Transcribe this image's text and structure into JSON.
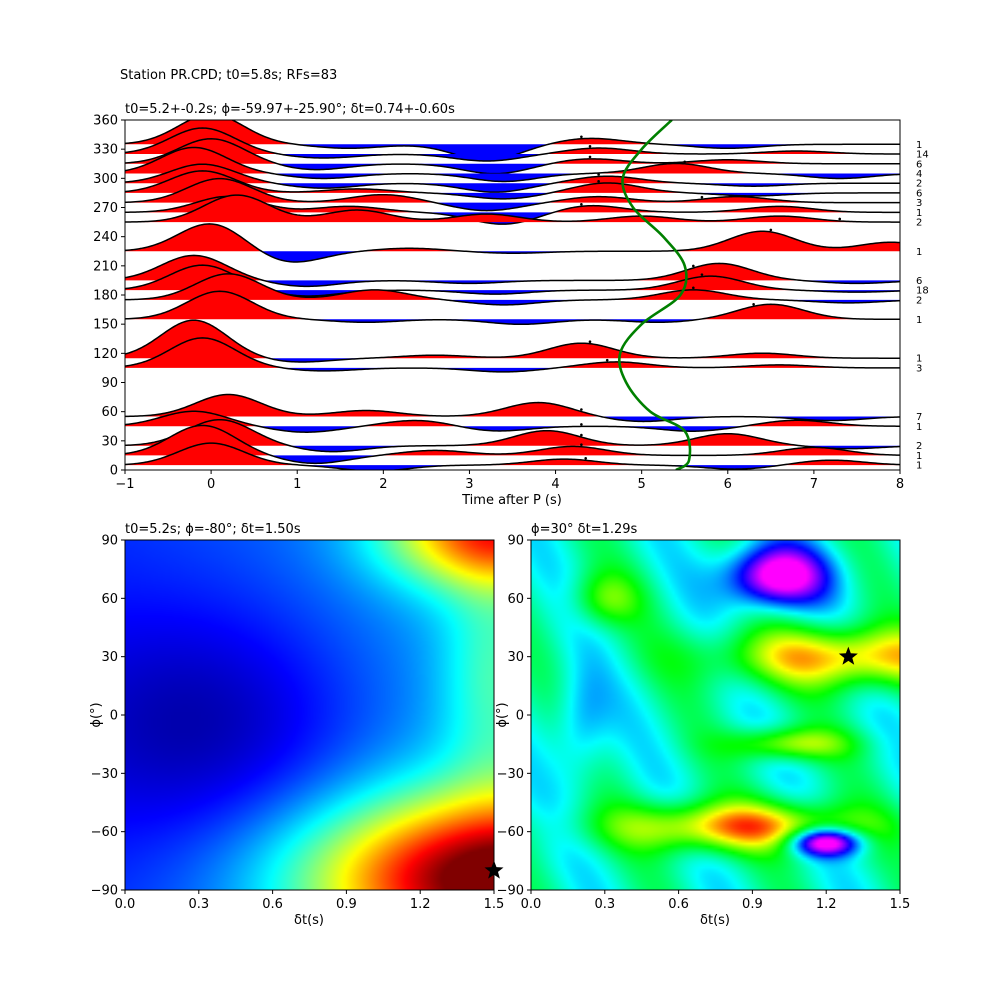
{
  "figure": {
    "suptitle": "Station PR.CPD; t0=5.8s; RFs=83"
  },
  "chart_data": [
    {
      "type": "line",
      "panel": "receiver-function-traces",
      "title": "t0=5.2+-0.2s; ϕ=-59.97+-25.90°; δt=0.74+-0.60s",
      "xlabel": "Time after P (s)",
      "ylabel": "",
      "xlim": [
        -1,
        8
      ],
      "ylim": [
        0,
        360
      ],
      "xticks": [
        -1,
        0,
        1,
        2,
        3,
        4,
        5,
        6,
        7,
        8
      ],
      "yticks": [
        0,
        30,
        60,
        90,
        120,
        150,
        180,
        210,
        240,
        270,
        300,
        330,
        360
      ],
      "positive_fill_color": "#ff0000",
      "negative_fill_color": "#0000ff",
      "trace_color": "#000000",
      "model_curve_color": "#008000",
      "model_curve": {
        "name": "",
        "description_values": [
          {
            "x": 5.4,
            "y": 0
          },
          {
            "x": 5.55,
            "y": 10
          },
          {
            "x": 5.5,
            "y": 40
          },
          {
            "x": 5.1,
            "y": 60
          },
          {
            "x": 4.82,
            "y": 90
          },
          {
            "x": 4.75,
            "y": 120
          },
          {
            "x": 5.0,
            "y": 150
          },
          {
            "x": 5.45,
            "y": 180
          },
          {
            "x": 5.5,
            "y": 210
          },
          {
            "x": 5.25,
            "y": 240
          },
          {
            "x": 4.9,
            "y": 270
          },
          {
            "x": 4.78,
            "y": 300
          },
          {
            "x": 5.0,
            "y": 330
          },
          {
            "x": 5.35,
            "y": 360
          }
        ]
      },
      "traces": [
        {
          "baz": 5,
          "count": "1",
          "dot_time": 4.35,
          "peaks": [
            {
              "t": 0.0,
              "a": 22
            },
            {
              "t": 1.9,
              "a": -6
            },
            {
              "t": 4.1,
              "a": 6
            },
            {
              "t": 6.1,
              "a": -4
            },
            {
              "t": 7.2,
              "a": 5
            }
          ]
        },
        {
          "baz": 15,
          "count": "1",
          "dot_time": 4.3,
          "peaks": [
            {
              "t": -0.1,
              "a": 30
            },
            {
              "t": 1.2,
              "a": -8
            },
            {
              "t": 2.6,
              "a": 5
            },
            {
              "t": 4.2,
              "a": 9
            },
            {
              "t": 7.0,
              "a": 8
            }
          ]
        },
        {
          "baz": 25,
          "count": "2",
          "dot_time": 4.3,
          "peaks": [
            {
              "t": 0.1,
              "a": 26
            },
            {
              "t": 1.4,
              "a": -6
            },
            {
              "t": 3.9,
              "a": 15
            },
            {
              "t": 6.0,
              "a": 12
            },
            {
              "t": 7.4,
              "a": -3
            }
          ]
        },
        {
          "baz": 45,
          "count": "1",
          "dot_time": 4.3,
          "peaks": [
            {
              "t": -0.2,
              "a": 15
            },
            {
              "t": 1.1,
              "a": -6
            },
            {
              "t": 2.4,
              "a": 6
            },
            {
              "t": 3.3,
              "a": -5
            },
            {
              "t": 5.6,
              "a": -5
            },
            {
              "t": 6.8,
              "a": 6
            }
          ]
        },
        {
          "baz": 55,
          "count": "7",
          "dot_time": 4.3,
          "peaks": [
            {
              "t": 0.2,
              "a": 22
            },
            {
              "t": 1.8,
              "a": 6
            },
            {
              "t": 3.8,
              "a": 14
            },
            {
              "t": 5.0,
              "a": -5
            },
            {
              "t": 7.2,
              "a": -4
            }
          ]
        },
        {
          "baz": 105,
          "count": "3",
          "dot_time": 4.6,
          "peaks": [
            {
              "t": -0.1,
              "a": 30
            },
            {
              "t": 1.3,
              "a": -3
            },
            {
              "t": 3.4,
              "a": -4
            },
            {
              "t": 4.7,
              "a": 6
            },
            {
              "t": 6.6,
              "a": 3
            }
          ]
        },
        {
          "baz": 115,
          "count": "1",
          "dot_time": 4.4,
          "peaks": [
            {
              "t": -0.2,
              "a": 38
            },
            {
              "t": 1.0,
              "a": -4
            },
            {
              "t": 2.6,
              "a": 3
            },
            {
              "t": 4.3,
              "a": 15
            },
            {
              "t": 6.4,
              "a": 5
            }
          ]
        },
        {
          "baz": 155,
          "count": "1",
          "dot_time": 6.3,
          "peaks": [
            {
              "t": 0.1,
              "a": 28
            },
            {
              "t": 1.8,
              "a": -3
            },
            {
              "t": 3.6,
              "a": -5
            },
            {
              "t": 5.2,
              "a": -3
            },
            {
              "t": 6.5,
              "a": 15
            }
          ]
        },
        {
          "baz": 175,
          "count": "2",
          "dot_time": 5.6,
          "peaks": [
            {
              "t": 0.2,
              "a": 26
            },
            {
              "t": 1.9,
              "a": 10
            },
            {
              "t": 3.4,
              "a": -5
            },
            {
              "t": 5.6,
              "a": 10
            },
            {
              "t": 7.4,
              "a": -3
            }
          ]
        },
        {
          "baz": 185,
          "count": "18",
          "dot_time": 5.7,
          "peaks": [
            {
              "t": -0.1,
              "a": 25
            },
            {
              "t": 1.1,
              "a": -6
            },
            {
              "t": 3.3,
              "a": -4
            },
            {
              "t": 5.8,
              "a": 14
            },
            {
              "t": 7.5,
              "a": -2
            }
          ]
        },
        {
          "baz": 195,
          "count": "6",
          "dot_time": 5.6,
          "peaks": [
            {
              "t": -0.2,
              "a": 25
            },
            {
              "t": 1.1,
              "a": -6
            },
            {
              "t": 3.0,
              "a": -3
            },
            {
              "t": 5.9,
              "a": 17
            },
            {
              "t": 7.5,
              "a": -3
            }
          ]
        },
        {
          "baz": 225,
          "count": "1",
          "dot_time": 6.5,
          "peaks": [
            {
              "t": 0.0,
              "a": 28
            },
            {
              "t": 0.9,
              "a": -12
            },
            {
              "t": 2.3,
              "a": 3
            },
            {
              "t": 3.5,
              "a": -2
            },
            {
              "t": 6.4,
              "a": 20
            },
            {
              "t": 7.9,
              "a": 9
            }
          ]
        },
        {
          "baz": 255,
          "count": "2",
          "dot_time": 7.3,
          "peaks": [
            {
              "t": 0.3,
              "a": 27
            },
            {
              "t": 1.7,
              "a": 12
            },
            {
              "t": 3.2,
              "a": 8
            },
            {
              "t": 5.0,
              "a": 6
            },
            {
              "t": 6.6,
              "a": 6
            }
          ]
        },
        {
          "baz": 265,
          "count": "1",
          "dot_time": 4.3,
          "peaks": [
            {
              "t": 0.2,
              "a": 16
            },
            {
              "t": 1.6,
              "a": 6
            },
            {
              "t": 3.4,
              "a": -12
            },
            {
              "t": 4.4,
              "a": 7
            },
            {
              "t": 6.6,
              "a": 6
            }
          ]
        },
        {
          "baz": 275,
          "count": "3",
          "dot_time": 5.7,
          "peaks": [
            {
              "t": 0.1,
              "a": 24
            },
            {
              "t": 2.0,
              "a": 8
            },
            {
              "t": 3.2,
              "a": -8
            },
            {
              "t": 4.5,
              "a": 6
            },
            {
              "t": 6.1,
              "a": 6
            }
          ]
        },
        {
          "baz": 285,
          "count": "6",
          "dot_time": 4.5,
          "peaks": [
            {
              "t": -0.1,
              "a": 22
            },
            {
              "t": 1.7,
              "a": 4
            },
            {
              "t": 3.4,
              "a": -6
            },
            {
              "t": 4.6,
              "a": 10
            },
            {
              "t": 6.3,
              "a": -3
            }
          ]
        },
        {
          "baz": 295,
          "count": "2",
          "dot_time": 4.5,
          "peaks": [
            {
              "t": -0.1,
              "a": 19
            },
            {
              "t": 1.3,
              "a": -5
            },
            {
              "t": 3.3,
              "a": -9
            },
            {
              "t": 4.6,
              "a": 7
            },
            {
              "t": 6.3,
              "a": -3
            }
          ]
        },
        {
          "baz": 305,
          "count": "4",
          "dot_time": 5.5,
          "peaks": [
            {
              "t": -0.2,
              "a": 26
            },
            {
              "t": 1.3,
              "a": -5
            },
            {
              "t": 3.4,
              "a": -8
            },
            {
              "t": 5.4,
              "a": 10
            },
            {
              "t": 7.3,
              "a": -5
            }
          ]
        },
        {
          "baz": 315,
          "count": "6",
          "dot_time": 4.4,
          "peaks": [
            {
              "t": 0.0,
              "a": 25
            },
            {
              "t": 1.2,
              "a": -6
            },
            {
              "t": 3.3,
              "a": -10
            },
            {
              "t": 4.4,
              "a": 5
            },
            {
              "t": 6.0,
              "a": 4
            }
          ]
        },
        {
          "baz": 325,
          "count": "14",
          "dot_time": 4.4,
          "peaks": [
            {
              "t": -0.1,
              "a": 26
            },
            {
              "t": 1.3,
              "a": -4
            },
            {
              "t": 3.2,
              "a": -7
            },
            {
              "t": 4.5,
              "a": 6
            },
            {
              "t": 6.8,
              "a": 3
            }
          ]
        },
        {
          "baz": 335,
          "count": "1",
          "dot_time": 4.3,
          "peaks": [
            {
              "t": 0.0,
              "a": 30
            },
            {
              "t": 1.6,
              "a": -4
            },
            {
              "t": 3.2,
              "a": -16
            },
            {
              "t": 4.4,
              "a": 6
            },
            {
              "t": 6.0,
              "a": -4
            }
          ]
        }
      ]
    },
    {
      "type": "heatmap",
      "panel": "grid-search-left",
      "title": "t0=5.2s; ϕ=-80°; δt=1.50s",
      "xlabel": "δt(s)",
      "ylabel": "ϕ(°)",
      "xlim": [
        0,
        1.5
      ],
      "ylim": [
        -90,
        90
      ],
      "xticks": [
        0.0,
        0.3,
        0.6,
        0.9,
        1.2,
        1.5
      ],
      "yticks": [
        -90,
        -60,
        -30,
        0,
        30,
        60,
        90
      ],
      "colormap": "jet",
      "best_fit": {
        "dt": 1.5,
        "phi": -80
      }
    },
    {
      "type": "heatmap",
      "panel": "grid-search-right",
      "title": "ϕ=30° δt=1.29s",
      "xlabel": "δt(s)",
      "ylabel": "ϕ(°)",
      "xlim": [
        0,
        1.5
      ],
      "ylim": [
        -90,
        90
      ],
      "xticks": [
        0.0,
        0.3,
        0.6,
        0.9,
        1.2,
        1.5
      ],
      "yticks": [
        -90,
        -60,
        -30,
        0,
        30,
        60,
        90
      ],
      "colormap": "hsv",
      "best_fit": {
        "dt": 1.29,
        "phi": 30
      }
    }
  ]
}
